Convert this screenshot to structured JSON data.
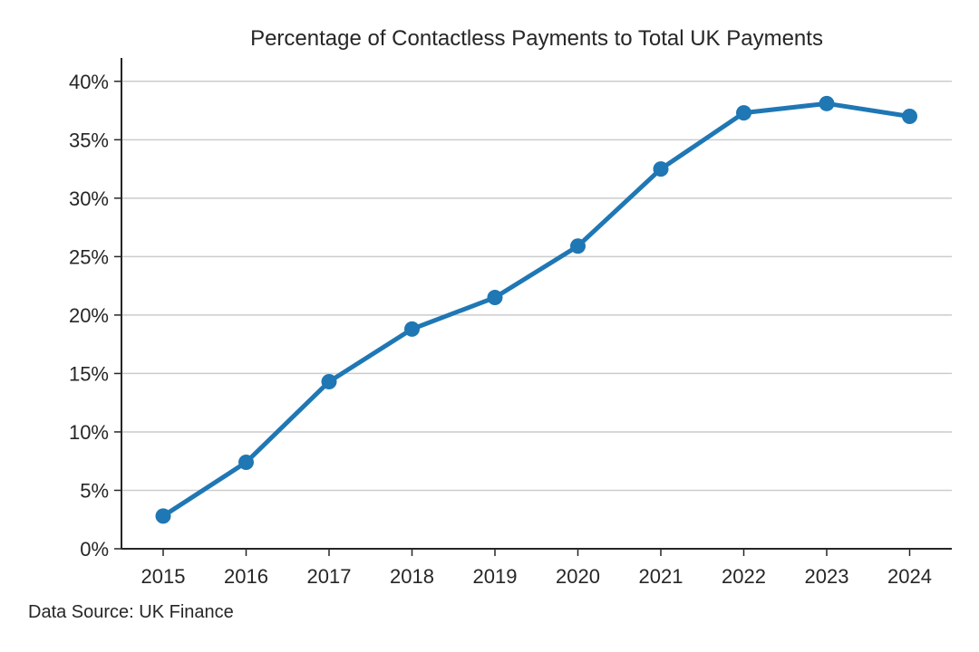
{
  "chart_data": {
    "type": "line",
    "title": "Percentage of Contactless Payments to Total UK Payments",
    "xlabel": "",
    "ylabel": "",
    "x": [
      "2015",
      "2016",
      "2017",
      "2018",
      "2019",
      "2020",
      "2021",
      "2022",
      "2023",
      "2024"
    ],
    "series": [
      {
        "values": [
          2.8,
          7.4,
          14.3,
          18.8,
          21.5,
          25.9,
          32.5,
          37.3,
          38.1,
          37.0
        ]
      }
    ],
    "ylim": [
      0,
      42
    ],
    "yticks": [
      0,
      5,
      10,
      15,
      20,
      25,
      30,
      35,
      40
    ],
    "ytick_labels": [
      "0%",
      "5%",
      "10%",
      "15%",
      "20%",
      "25%",
      "30%",
      "35%",
      "40%"
    ],
    "grid": "horizontal",
    "legend": "none",
    "line_color": "#1f77b4",
    "grid_color": "#cccccc",
    "axis_color": "#262626"
  },
  "footer": {
    "source": "Data Source: UK Finance"
  }
}
